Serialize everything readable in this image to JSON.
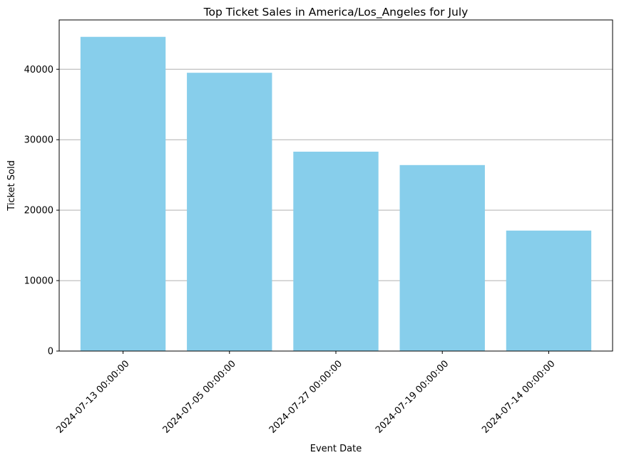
{
  "chart_data": {
    "type": "bar",
    "title": "Top Ticket Sales in America/Los_Angeles for July",
    "xlabel": "Event Date",
    "ylabel": "Ticket Sold",
    "categories": [
      "2024-07-13 00:00:00",
      "2024-07-05 00:00:00",
      "2024-07-27 00:00:00",
      "2024-07-19 00:00:00",
      "2024-07-14 00:00:00"
    ],
    "values": [
      44600,
      39500,
      28300,
      26400,
      17100
    ],
    "ylim": [
      0,
      47000
    ],
    "yticks": [
      0,
      10000,
      20000,
      30000,
      40000
    ],
    "ytick_labels": [
      "0",
      "10000",
      "20000",
      "30000",
      "40000"
    ],
    "grid": "y",
    "bar_color": "#87CEEB",
    "grid_color": "#b0b0b0"
  }
}
